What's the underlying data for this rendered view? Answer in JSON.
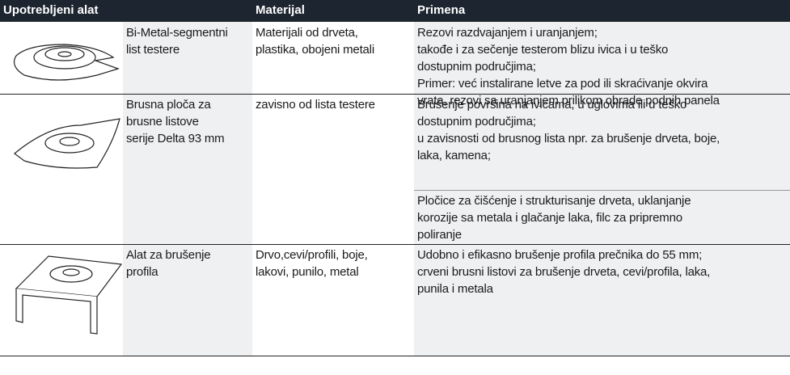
{
  "header": [
    "Upotrebljeni alat",
    "Materijal",
    "Primena"
  ],
  "rows": [
    {
      "tool": [
        "Bi-Metal-segmentni",
        "list testere"
      ],
      "material": [
        "Materijali od drveta,",
        "plastika, obojeni metali"
      ],
      "application": [
        [
          "Rezovi razdvajanjem i uranjanjem;",
          "takođe i za sečenje testerom blizu ivica i u teško",
          "dostupnim područjima;",
          "Primer: već instalirane letve za pod ili skraćivanje okvira",
          "vrata, rezovi sa uranjanjem prilikom obrade podnih panela"
        ]
      ]
    },
    {
      "tool": [
        "Brusna ploča za",
        "brusne listove",
        "serije Delta 93 mm"
      ],
      "material": [
        "zavisno od lista testere"
      ],
      "application": [
        [
          "Brušenje površina na ivicama, u uglovima ili u teško",
          "dostupnim područjima;",
          "u zavisnosti od brusnog lista npr. za brušenje drveta, boje,",
          "laka, kamena;"
        ],
        [
          "Pločice za čišćenje i strukturisanje drveta, uklanjanje",
          "korozije sa metala i glačanje laka, filc za pripremno",
          "poliranje"
        ]
      ]
    },
    {
      "tool": [
        "Alat za brušenje",
        "profila"
      ],
      "material": [
        "Drvo,cevi/profili, boje,",
        "lakovi, punilo, metal"
      ],
      "application": [
        [
          "Udobno i efikasno brušenje profila prečnika do 55 mm;",
          "crveni brusni listovi za brušenje drveta, cevi/profila, laka,",
          "punila i metala"
        ]
      ]
    }
  ]
}
